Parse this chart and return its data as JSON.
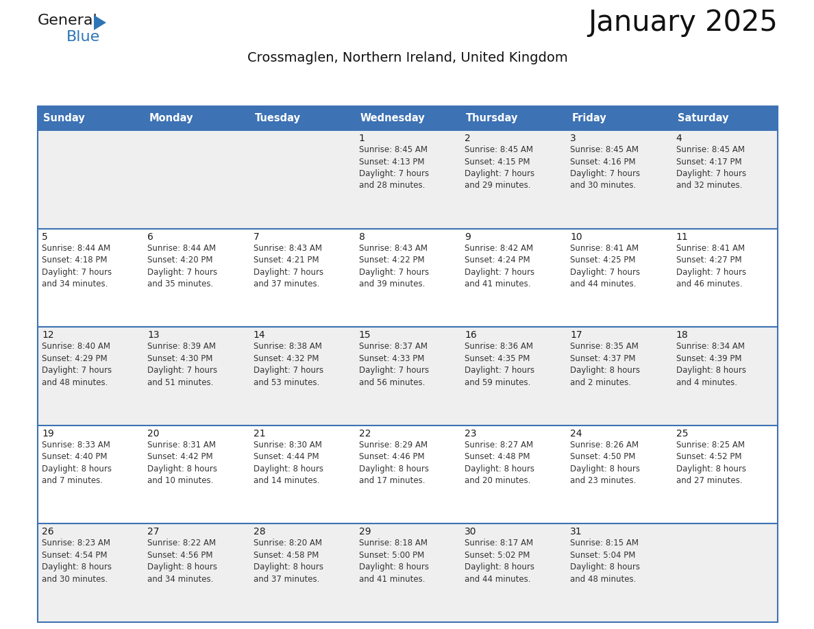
{
  "title": "January 2025",
  "subtitle": "Crossmaglen, Northern Ireland, United Kingdom",
  "header_bg": "#3D72B4",
  "header_text": "#FFFFFF",
  "header_font_size": 10.5,
  "day_headers": [
    "Sunday",
    "Monday",
    "Tuesday",
    "Wednesday",
    "Thursday",
    "Friday",
    "Saturday"
  ],
  "title_font_size": 30,
  "subtitle_font_size": 14,
  "cell_text_color": "#333333",
  "cell_number_color": "#1a1a1a",
  "row_separator_color": "#3D72B4",
  "col_separator_color": "#3D72B4",
  "outer_border_color": "#3D72B4",
  "bg_color": "#FFFFFF",
  "cell_bg_odd": "#EFEFEF",
  "cell_bg_even": "#FFFFFF",
  "logo_general_color": "#1a1a1a",
  "logo_blue_color": "#2E75B6",
  "calendar": [
    [
      {
        "day": "",
        "text": ""
      },
      {
        "day": "",
        "text": ""
      },
      {
        "day": "",
        "text": ""
      },
      {
        "day": "1",
        "text": "Sunrise: 8:45 AM\nSunset: 4:13 PM\nDaylight: 7 hours\nand 28 minutes."
      },
      {
        "day": "2",
        "text": "Sunrise: 8:45 AM\nSunset: 4:15 PM\nDaylight: 7 hours\nand 29 minutes."
      },
      {
        "day": "3",
        "text": "Sunrise: 8:45 AM\nSunset: 4:16 PM\nDaylight: 7 hours\nand 30 minutes."
      },
      {
        "day": "4",
        "text": "Sunrise: 8:45 AM\nSunset: 4:17 PM\nDaylight: 7 hours\nand 32 minutes."
      }
    ],
    [
      {
        "day": "5",
        "text": "Sunrise: 8:44 AM\nSunset: 4:18 PM\nDaylight: 7 hours\nand 34 minutes."
      },
      {
        "day": "6",
        "text": "Sunrise: 8:44 AM\nSunset: 4:20 PM\nDaylight: 7 hours\nand 35 minutes."
      },
      {
        "day": "7",
        "text": "Sunrise: 8:43 AM\nSunset: 4:21 PM\nDaylight: 7 hours\nand 37 minutes."
      },
      {
        "day": "8",
        "text": "Sunrise: 8:43 AM\nSunset: 4:22 PM\nDaylight: 7 hours\nand 39 minutes."
      },
      {
        "day": "9",
        "text": "Sunrise: 8:42 AM\nSunset: 4:24 PM\nDaylight: 7 hours\nand 41 minutes."
      },
      {
        "day": "10",
        "text": "Sunrise: 8:41 AM\nSunset: 4:25 PM\nDaylight: 7 hours\nand 44 minutes."
      },
      {
        "day": "11",
        "text": "Sunrise: 8:41 AM\nSunset: 4:27 PM\nDaylight: 7 hours\nand 46 minutes."
      }
    ],
    [
      {
        "day": "12",
        "text": "Sunrise: 8:40 AM\nSunset: 4:29 PM\nDaylight: 7 hours\nand 48 minutes."
      },
      {
        "day": "13",
        "text": "Sunrise: 8:39 AM\nSunset: 4:30 PM\nDaylight: 7 hours\nand 51 minutes."
      },
      {
        "day": "14",
        "text": "Sunrise: 8:38 AM\nSunset: 4:32 PM\nDaylight: 7 hours\nand 53 minutes."
      },
      {
        "day": "15",
        "text": "Sunrise: 8:37 AM\nSunset: 4:33 PM\nDaylight: 7 hours\nand 56 minutes."
      },
      {
        "day": "16",
        "text": "Sunrise: 8:36 AM\nSunset: 4:35 PM\nDaylight: 7 hours\nand 59 minutes."
      },
      {
        "day": "17",
        "text": "Sunrise: 8:35 AM\nSunset: 4:37 PM\nDaylight: 8 hours\nand 2 minutes."
      },
      {
        "day": "18",
        "text": "Sunrise: 8:34 AM\nSunset: 4:39 PM\nDaylight: 8 hours\nand 4 minutes."
      }
    ],
    [
      {
        "day": "19",
        "text": "Sunrise: 8:33 AM\nSunset: 4:40 PM\nDaylight: 8 hours\nand 7 minutes."
      },
      {
        "day": "20",
        "text": "Sunrise: 8:31 AM\nSunset: 4:42 PM\nDaylight: 8 hours\nand 10 minutes."
      },
      {
        "day": "21",
        "text": "Sunrise: 8:30 AM\nSunset: 4:44 PM\nDaylight: 8 hours\nand 14 minutes."
      },
      {
        "day": "22",
        "text": "Sunrise: 8:29 AM\nSunset: 4:46 PM\nDaylight: 8 hours\nand 17 minutes."
      },
      {
        "day": "23",
        "text": "Sunrise: 8:27 AM\nSunset: 4:48 PM\nDaylight: 8 hours\nand 20 minutes."
      },
      {
        "day": "24",
        "text": "Sunrise: 8:26 AM\nSunset: 4:50 PM\nDaylight: 8 hours\nand 23 minutes."
      },
      {
        "day": "25",
        "text": "Sunrise: 8:25 AM\nSunset: 4:52 PM\nDaylight: 8 hours\nand 27 minutes."
      }
    ],
    [
      {
        "day": "26",
        "text": "Sunrise: 8:23 AM\nSunset: 4:54 PM\nDaylight: 8 hours\nand 30 minutes."
      },
      {
        "day": "27",
        "text": "Sunrise: 8:22 AM\nSunset: 4:56 PM\nDaylight: 8 hours\nand 34 minutes."
      },
      {
        "day": "28",
        "text": "Sunrise: 8:20 AM\nSunset: 4:58 PM\nDaylight: 8 hours\nand 37 minutes."
      },
      {
        "day": "29",
        "text": "Sunrise: 8:18 AM\nSunset: 5:00 PM\nDaylight: 8 hours\nand 41 minutes."
      },
      {
        "day": "30",
        "text": "Sunrise: 8:17 AM\nSunset: 5:02 PM\nDaylight: 8 hours\nand 44 minutes."
      },
      {
        "day": "31",
        "text": "Sunrise: 8:15 AM\nSunset: 5:04 PM\nDaylight: 8 hours\nand 48 minutes."
      },
      {
        "day": "",
        "text": ""
      }
    ]
  ]
}
